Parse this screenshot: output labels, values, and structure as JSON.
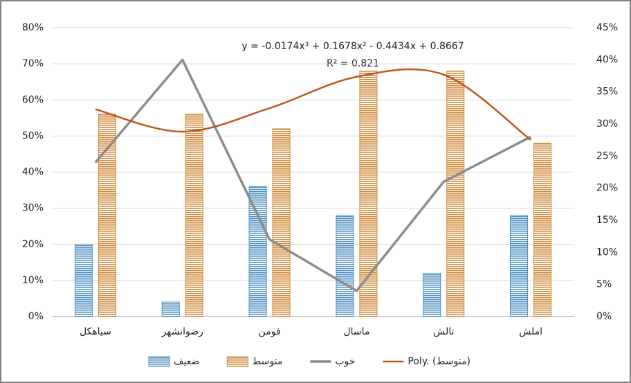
{
  "chart_data": {
    "type": "bar",
    "categories": [
      "سیاهکل",
      "رضوانشهر",
      "فومن",
      "ماسال",
      "تالش",
      "املش"
    ],
    "series": [
      {
        "name": "ضعیف",
        "color": "#4f8fc0",
        "values": [
          20,
          4,
          36,
          28,
          12,
          28
        ]
      },
      {
        "name": "متوسط",
        "color": "#d08a3a",
        "values": [
          56,
          56,
          52,
          68,
          68,
          48
        ]
      },
      {
        "name": "خوب",
        "color": "#8c8c8c",
        "type": "line",
        "axis": "y2",
        "values": [
          24,
          40,
          12,
          4,
          21,
          28
        ]
      }
    ],
    "trendline": {
      "name": "Poly. (متوسط)",
      "color": "#c0561a",
      "values": [
        57.4,
        51.2,
        57.7,
        66.4,
        67.0,
        48.9
      ],
      "equation": "y = -0.0174x³ + 0.1678x² - 0.4434x + 0.8667",
      "r_squared": "R² = 0.821"
    },
    "ylim": [
      0,
      80
    ],
    "yticks": [
      {
        "value": 0,
        "label": "0%"
      },
      {
        "value": 10,
        "label": "10%"
      },
      {
        "value": 20,
        "label": "20%"
      },
      {
        "value": 30,
        "label": "30%"
      },
      {
        "value": 40,
        "label": "40%"
      },
      {
        "value": 50,
        "label": "50%"
      },
      {
        "value": 60,
        "label": "60%"
      },
      {
        "value": 70,
        "label": "70%"
      },
      {
        "value": 80,
        "label": "80%"
      }
    ],
    "y2lim": [
      0,
      45
    ],
    "y2ticks": [
      {
        "value": 0,
        "label": "0%"
      },
      {
        "value": 5,
        "label": "5%"
      },
      {
        "value": 10,
        "label": "10%"
      },
      {
        "value": 15,
        "label": "15%"
      },
      {
        "value": 20,
        "label": "20%"
      },
      {
        "value": 25,
        "label": "25%"
      },
      {
        "value": 30,
        "label": "30%"
      },
      {
        "value": 35,
        "label": "35%"
      },
      {
        "value": 40,
        "label": "40%"
      },
      {
        "value": 45,
        "label": "45%"
      }
    ],
    "grid": true,
    "legend": "bottom"
  }
}
